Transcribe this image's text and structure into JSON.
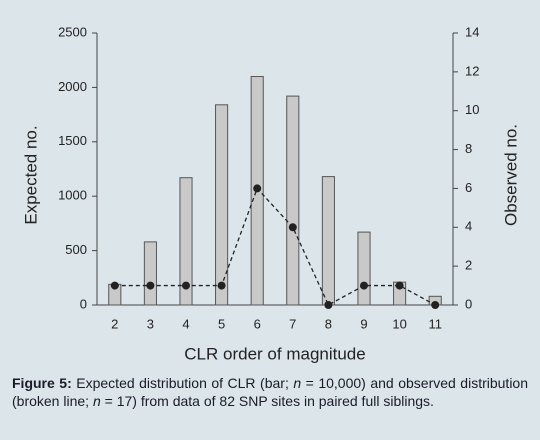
{
  "chart_data": {
    "type": "combo",
    "categories": [
      "2",
      "3",
      "4",
      "5",
      "6",
      "7",
      "8",
      "9",
      "10",
      "11"
    ],
    "series": [
      {
        "type": "bar",
        "color": "#c9c9c9",
        "values": [
          190,
          580,
          1170,
          1840,
          2100,
          1920,
          1180,
          670,
          210,
          80
        ]
      },
      {
        "type": "line",
        "color": "#222222",
        "axis": "y2",
        "values": [
          1,
          1,
          1,
          1,
          6,
          4,
          0,
          1,
          1,
          0
        ]
      }
    ],
    "ylim": [
      0,
      2500
    ],
    "yticks": [
      0,
      500,
      1000,
      1500,
      2000,
      2500
    ],
    "y2lim": [
      0,
      14
    ],
    "y2ticks": [
      0,
      2,
      4,
      6,
      8,
      10,
      12,
      14
    ],
    "xlabel": "CLR order of magnitude",
    "ylabel": "Expected no.",
    "y2label": "Observed no."
  },
  "caption": {
    "label": "Figure 5:",
    "parts": [
      "Expected distribution of CLR (bar; ",
      "n",
      " = 10,000) and observed distribution (broken line; ",
      "n",
      " = 17) from data of 82 SNP sites in paired full siblings."
    ]
  }
}
